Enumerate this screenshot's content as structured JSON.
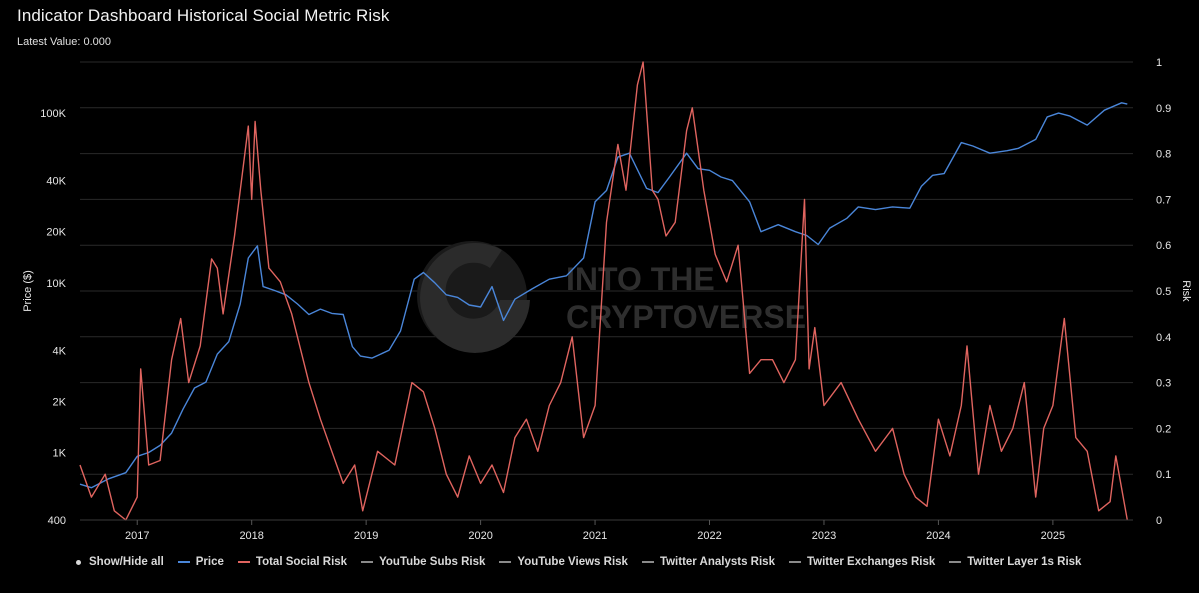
{
  "header": {
    "title": "Indicator Dashboard Historical Social Metric Risk",
    "subtitle": "Latest Value: 0.000"
  },
  "watermark": {
    "line1": "INTO THE",
    "line2": "CRYPTOVERSE"
  },
  "colors": {
    "background": "#000000",
    "grid": "#2a2a2a",
    "price": "#4a86d9",
    "risk": "#e0645f",
    "inactive": "#8a8a8a",
    "text": "#e6e6e6"
  },
  "legend": {
    "show_hide_all": "Show/Hide all",
    "items": [
      {
        "label": "Price",
        "color": "#4a86d9"
      },
      {
        "label": "Total Social Risk",
        "color": "#e0645f"
      },
      {
        "label": "YouTube Subs Risk",
        "color": "#8a8a8a"
      },
      {
        "label": "YouTube Views Risk",
        "color": "#8a8a8a"
      },
      {
        "label": "Twitter Analysts Risk",
        "color": "#8a8a8a"
      },
      {
        "label": "Twitter Exchanges Risk",
        "color": "#8a8a8a"
      },
      {
        "label": "Twitter Layer 1s Risk",
        "color": "#8a8a8a"
      }
    ]
  },
  "chart_data": {
    "type": "line",
    "xlabel": "",
    "ylabel": "Price ($)",
    "y2label": "Risk",
    "x_ticks": [
      "2017",
      "2018",
      "2019",
      "2020",
      "2021",
      "2022",
      "2023",
      "2024",
      "2025"
    ],
    "xlim": [
      2016.5,
      2025.7
    ],
    "yscale": "log",
    "ylim": [
      400,
      200000
    ],
    "y_ticks": [
      "400",
      "1K",
      "2K",
      "4K",
      "10K",
      "20K",
      "40K",
      "100K"
    ],
    "y2lim": [
      0,
      1
    ],
    "y2_ticks": [
      "0",
      "0.1",
      "0.2",
      "0.3",
      "0.4",
      "0.5",
      "0.6",
      "0.7",
      "0.8",
      "0.9",
      "1"
    ],
    "grid": true,
    "legend_position": "bottom",
    "series": [
      {
        "name": "Price",
        "axis": "left",
        "x": [
          2016.5,
          2016.6,
          2016.75,
          2016.9,
          2017.0,
          2017.1,
          2017.2,
          2017.3,
          2017.4,
          2017.5,
          2017.6,
          2017.7,
          2017.8,
          2017.9,
          2017.97,
          2018.05,
          2018.1,
          2018.2,
          2018.3,
          2018.4,
          2018.5,
          2018.6,
          2018.7,
          2018.8,
          2018.88,
          2018.95,
          2019.05,
          2019.2,
          2019.3,
          2019.42,
          2019.5,
          2019.6,
          2019.7,
          2019.8,
          2019.9,
          2020.0,
          2020.1,
          2020.2,
          2020.3,
          2020.45,
          2020.6,
          2020.75,
          2020.9,
          2021.0,
          2021.1,
          2021.2,
          2021.3,
          2021.45,
          2021.55,
          2021.65,
          2021.8,
          2021.9,
          2022.0,
          2022.1,
          2022.2,
          2022.35,
          2022.45,
          2022.6,
          2022.75,
          2022.85,
          2022.95,
          2023.05,
          2023.2,
          2023.3,
          2023.45,
          2023.6,
          2023.75,
          2023.85,
          2023.95,
          2024.05,
          2024.2,
          2024.3,
          2024.45,
          2024.6,
          2024.7,
          2024.85,
          2024.95,
          2025.05,
          2025.15,
          2025.3,
          2025.45,
          2025.6,
          2025.65
        ],
        "values": [
          650,
          620,
          700,
          760,
          950,
          1000,
          1100,
          1300,
          1800,
          2400,
          2600,
          3800,
          4500,
          7500,
          14000,
          16500,
          9500,
          9000,
          8500,
          7500,
          6500,
          7000,
          6600,
          6500,
          4200,
          3700,
          3600,
          4000,
          5200,
          10500,
          11500,
          10000,
          8500,
          8200,
          7400,
          7200,
          9500,
          6000,
          8000,
          9200,
          10500,
          11000,
          14000,
          30000,
          35000,
          55000,
          58000,
          36000,
          34000,
          42000,
          58000,
          47000,
          46000,
          42000,
          40000,
          30000,
          20000,
          22000,
          20000,
          19000,
          16800,
          21000,
          24000,
          28000,
          27000,
          28000,
          27500,
          37000,
          43000,
          44000,
          67000,
          64000,
          58000,
          60000,
          62000,
          70000,
          95000,
          100000,
          96000,
          85000,
          104000,
          115000,
          113000
        ]
      },
      {
        "name": "Total Social Risk",
        "axis": "right",
        "x": [
          2016.5,
          2016.6,
          2016.72,
          2016.8,
          2016.9,
          2017.0,
          2017.03,
          2017.1,
          2017.2,
          2017.3,
          2017.38,
          2017.45,
          2017.55,
          2017.65,
          2017.7,
          2017.75,
          2017.85,
          2017.93,
          2017.97,
          2018.0,
          2018.03,
          2018.08,
          2018.15,
          2018.25,
          2018.35,
          2018.5,
          2018.6,
          2018.7,
          2018.8,
          2018.9,
          2018.97,
          2019.1,
          2019.25,
          2019.4,
          2019.5,
          2019.6,
          2019.7,
          2019.8,
          2019.9,
          2020.0,
          2020.1,
          2020.2,
          2020.3,
          2020.4,
          2020.5,
          2020.6,
          2020.7,
          2020.8,
          2020.9,
          2021.0,
          2021.1,
          2021.2,
          2021.27,
          2021.37,
          2021.42,
          2021.5,
          2021.55,
          2021.62,
          2021.7,
          2021.8,
          2021.85,
          2021.95,
          2022.05,
          2022.15,
          2022.25,
          2022.35,
          2022.45,
          2022.55,
          2022.65,
          2022.75,
          2022.83,
          2022.87,
          2022.92,
          2023.0,
          2023.15,
          2023.3,
          2023.45,
          2023.6,
          2023.7,
          2023.8,
          2023.9,
          2024.0,
          2024.1,
          2024.2,
          2024.25,
          2024.35,
          2024.45,
          2024.55,
          2024.65,
          2024.75,
          2024.85,
          2024.92,
          2025.0,
          2025.1,
          2025.2,
          2025.3,
          2025.4,
          2025.5,
          2025.55,
          2025.65
        ],
        "values": [
          0.12,
          0.05,
          0.1,
          0.02,
          0.0,
          0.05,
          0.33,
          0.12,
          0.13,
          0.35,
          0.44,
          0.3,
          0.38,
          0.57,
          0.55,
          0.45,
          0.62,
          0.78,
          0.86,
          0.7,
          0.87,
          0.72,
          0.55,
          0.52,
          0.45,
          0.3,
          0.22,
          0.15,
          0.08,
          0.12,
          0.02,
          0.15,
          0.12,
          0.3,
          0.28,
          0.2,
          0.1,
          0.05,
          0.14,
          0.08,
          0.12,
          0.06,
          0.18,
          0.22,
          0.15,
          0.25,
          0.3,
          0.4,
          0.18,
          0.25,
          0.65,
          0.82,
          0.72,
          0.95,
          1.0,
          0.72,
          0.7,
          0.62,
          0.65,
          0.85,
          0.9,
          0.72,
          0.58,
          0.52,
          0.6,
          0.32,
          0.35,
          0.35,
          0.3,
          0.35,
          0.7,
          0.33,
          0.42,
          0.25,
          0.3,
          0.22,
          0.15,
          0.2,
          0.1,
          0.05,
          0.03,
          0.22,
          0.14,
          0.25,
          0.38,
          0.1,
          0.25,
          0.15,
          0.2,
          0.3,
          0.05,
          0.2,
          0.25,
          0.44,
          0.18,
          0.15,
          0.02,
          0.04,
          0.14,
          0.0
        ]
      },
      {
        "name": "YouTube Subs Risk",
        "axis": "right",
        "visible": false
      },
      {
        "name": "YouTube Views Risk",
        "axis": "right",
        "visible": false
      },
      {
        "name": "Twitter Analysts Risk",
        "axis": "right",
        "visible": false
      },
      {
        "name": "Twitter Exchanges Risk",
        "axis": "right",
        "visible": false
      },
      {
        "name": "Twitter Layer 1s Risk",
        "axis": "right",
        "visible": false
      }
    ]
  }
}
